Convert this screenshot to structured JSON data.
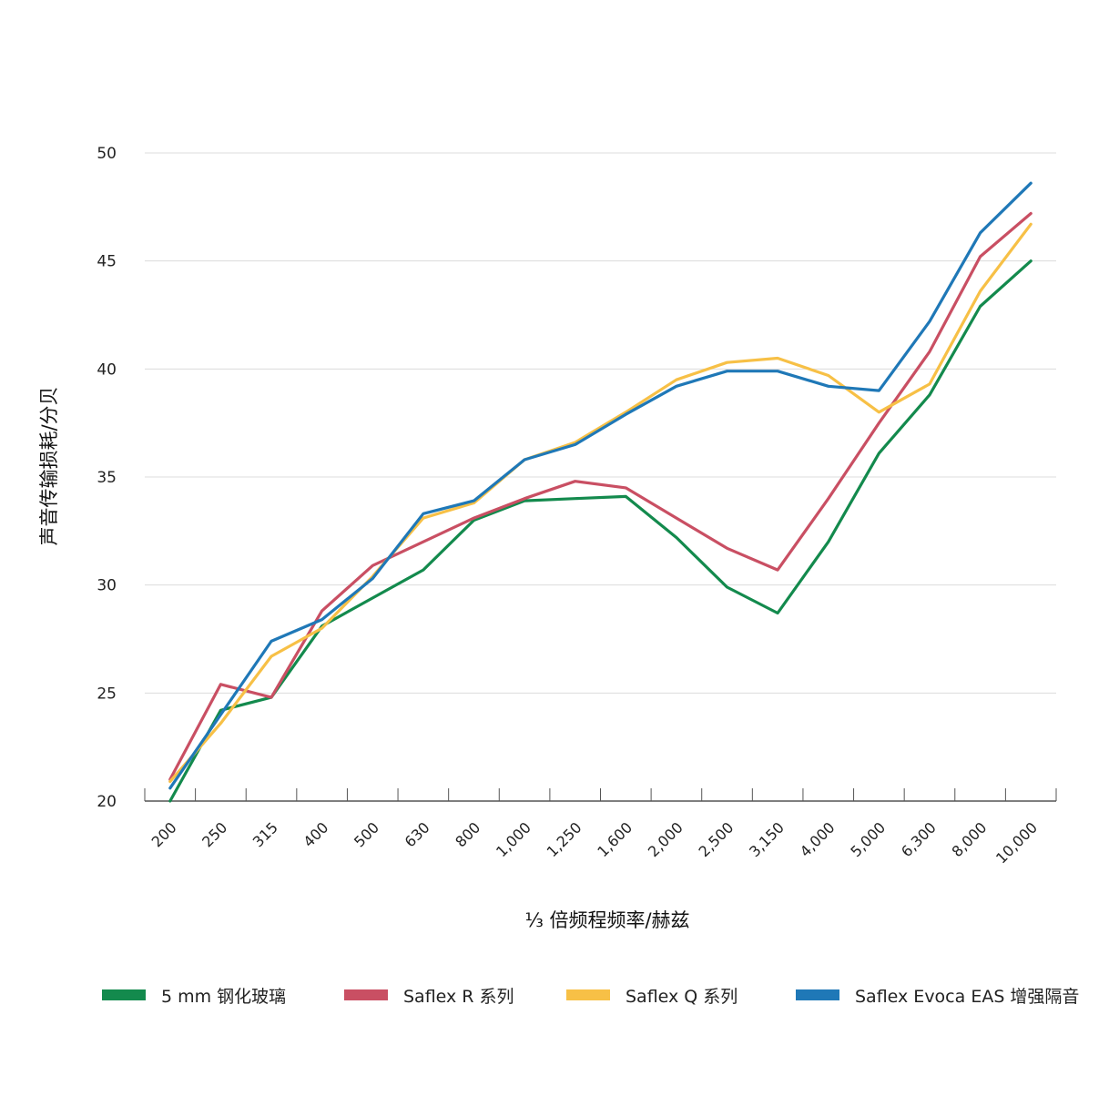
{
  "chart_data": {
    "type": "line",
    "ylabel": "声音传输损耗/分贝",
    "xlabel": "⅓ 倍频程频率/赫兹",
    "ylim": [
      20,
      50
    ],
    "yticks": [
      20,
      25,
      30,
      35,
      40,
      45,
      50
    ],
    "grid": "horizontal",
    "legend_position": "bottom",
    "categories": [
      "200",
      "250",
      "315",
      "400",
      "500",
      "630",
      "800",
      "1,000",
      "1,250",
      "1,600",
      "2,000",
      "2,500",
      "3,150",
      "4,000",
      "5,000",
      "6,300",
      "8,000",
      "10,000"
    ],
    "series": [
      {
        "name": "5 mm 钢化玻璃",
        "color": "#138a4d",
        "values": [
          19.5,
          24.2,
          24.8,
          28.1,
          29.4,
          30.7,
          33.0,
          33.9,
          34.0,
          34.1,
          32.2,
          29.9,
          28.7,
          32.0,
          36.1,
          38.8,
          42.9,
          45.0
        ]
      },
      {
        "name": "Saflex R 系列",
        "color": "#c94f63",
        "values": [
          21.0,
          25.4,
          24.8,
          28.8,
          30.9,
          32.0,
          33.1,
          34.0,
          34.8,
          34.5,
          33.1,
          31.7,
          30.7,
          34.0,
          37.5,
          40.8,
          45.2,
          47.2
        ]
      },
      {
        "name": "Saflex Q 系列",
        "color": "#f7c046",
        "values": [
          20.9,
          23.6,
          26.7,
          28.0,
          30.4,
          33.1,
          33.8,
          35.8,
          36.6,
          38.0,
          39.5,
          40.3,
          40.5,
          39.7,
          38.0,
          39.3,
          43.6,
          46.7
        ]
      },
      {
        "name": "Saflex Evoca EAS 增强隔音",
        "color": "#1f78b7",
        "values": [
          20.6,
          24.0,
          27.4,
          28.4,
          30.3,
          33.3,
          33.9,
          35.8,
          36.5,
          37.9,
          39.2,
          39.9,
          39.9,
          39.2,
          39.0,
          42.2,
          46.3,
          48.6
        ]
      }
    ]
  }
}
